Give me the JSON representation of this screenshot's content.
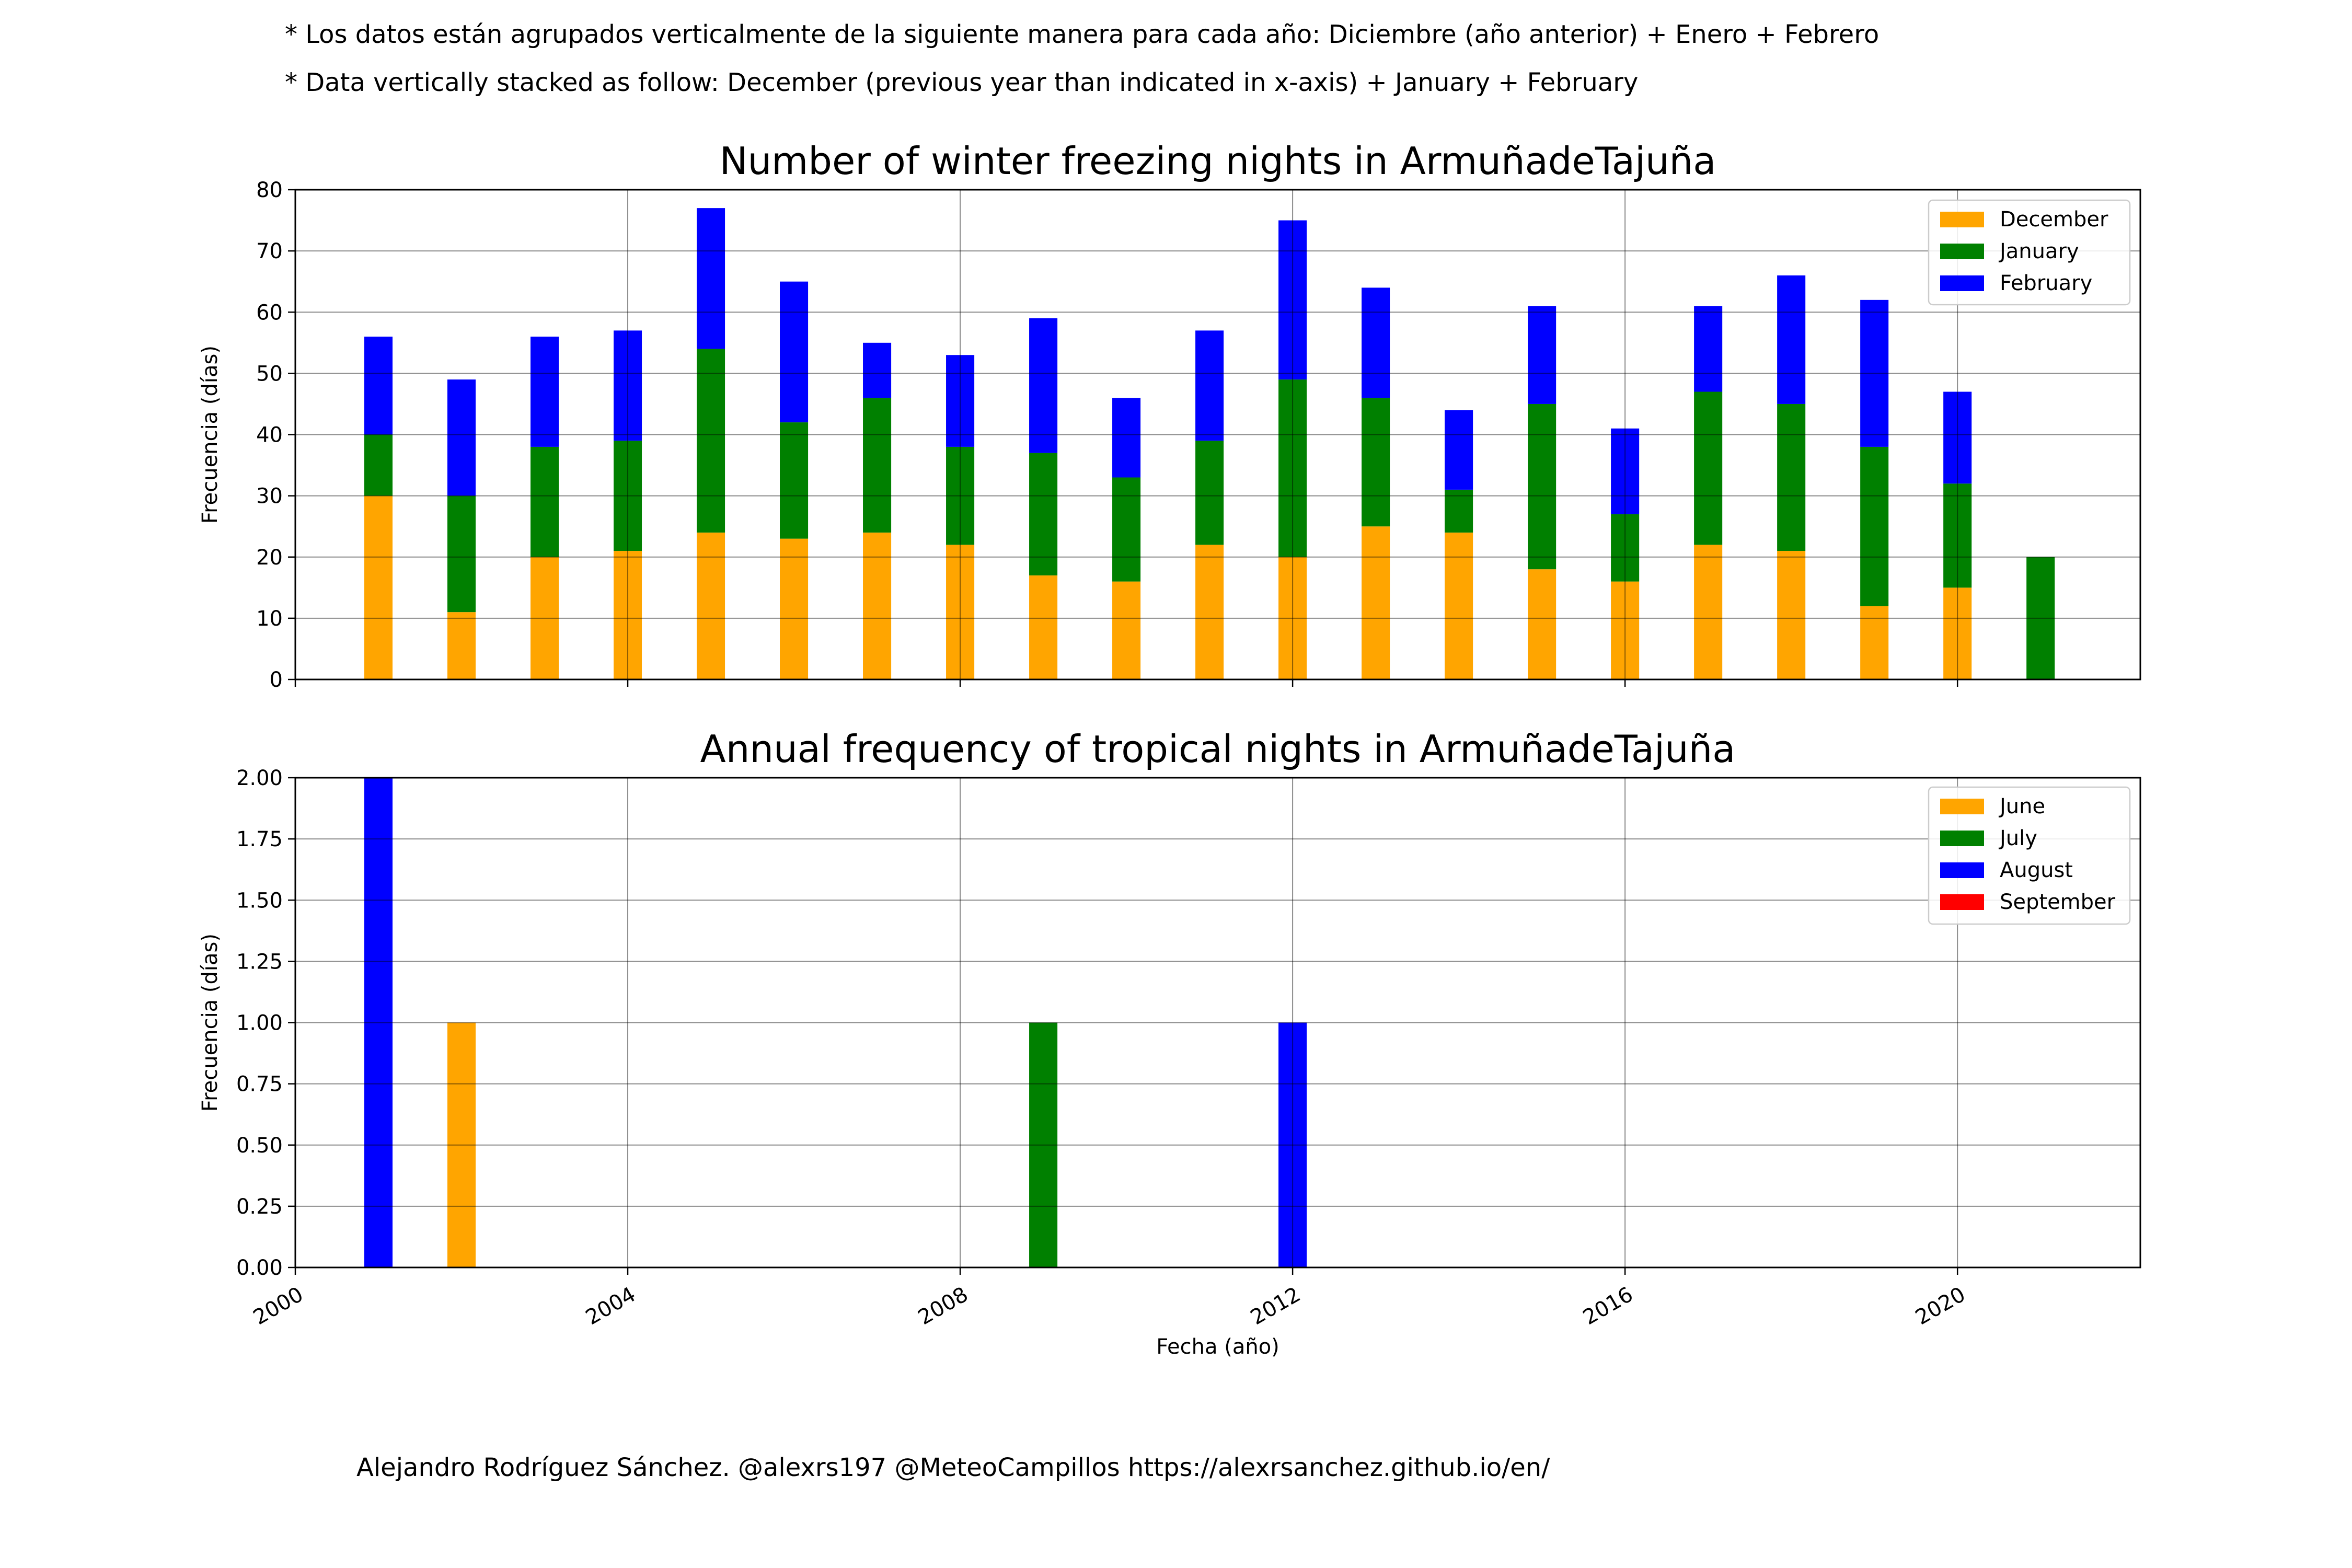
{
  "notes": {
    "es": "* Los datos están agrupados verticalmente de la siguiente manera para cada año: Diciembre (año anterior) + Enero  + Febrero",
    "en": "* Data vertically stacked as follow: December (previous year than indicated in x-axis) + January  + February"
  },
  "credit": "Alejandro Rodríguez Sánchez. @alexrs197 @MeteoCampillos   https://alexrsanchez.github.io/en/",
  "colors": {
    "orange": "#ffa500",
    "green": "#008000",
    "blue": "#0000ff",
    "red": "#ff0000"
  },
  "chart_data": [
    {
      "type": "bar",
      "stacked": true,
      "title": "Number of winter freezing nights in ArmuñadeTajuña",
      "ylabel": "Frecuencia (días)",
      "xlabel": "",
      "ylim": [
        0,
        80
      ],
      "yticks": [
        0,
        10,
        20,
        30,
        40,
        50,
        60,
        70,
        80
      ],
      "ytick_labels": [
        "0",
        "10",
        "20",
        "30",
        "40",
        "50",
        "60",
        "70",
        "80"
      ],
      "xlim": [
        2000,
        2022.2
      ],
      "xticks": [
        2000,
        2004,
        2008,
        2012,
        2016,
        2020
      ],
      "grid": true,
      "legend_position": "top-right",
      "x": [
        2001,
        2002,
        2003,
        2004,
        2005,
        2006,
        2007,
        2008,
        2009,
        2010,
        2011,
        2012,
        2013,
        2014,
        2015,
        2016,
        2017,
        2018,
        2019,
        2020,
        2021
      ],
      "series": [
        {
          "name": "December",
          "color": "#ffa500",
          "values": [
            30,
            11,
            20,
            21,
            24,
            23,
            24,
            22,
            17,
            16,
            22,
            20,
            25,
            24,
            18,
            16,
            22,
            21,
            12,
            15,
            0
          ]
        },
        {
          "name": "January",
          "color": "#008000",
          "values": [
            10,
            19,
            18,
            18,
            30,
            19,
            22,
            16,
            20,
            17,
            17,
            29,
            21,
            7,
            27,
            11,
            25,
            24,
            26,
            17,
            20
          ]
        },
        {
          "name": "February",
          "color": "#0000ff",
          "values": [
            16,
            19,
            18,
            18,
            23,
            23,
            9,
            15,
            22,
            13,
            18,
            26,
            18,
            13,
            16,
            14,
            14,
            21,
            24,
            15,
            0
          ]
        }
      ]
    },
    {
      "type": "bar",
      "stacked": true,
      "title": "Annual frequency of tropical nights in ArmuñadeTajuña",
      "ylabel": "Frecuencia (días)",
      "xlabel": "Fecha (año)",
      "ylim": [
        0,
        2
      ],
      "yticks": [
        0,
        0.25,
        0.5,
        0.75,
        1,
        1.25,
        1.5,
        1.75,
        2
      ],
      "ytick_labels": [
        "0.00",
        "0.25",
        "0.50",
        "0.75",
        "1.00",
        "1.25",
        "1.50",
        "1.75",
        "2.00"
      ],
      "xlim": [
        2000,
        2022.2
      ],
      "xticks": [
        2000,
        2004,
        2008,
        2012,
        2016,
        2020
      ],
      "xtick_labels": [
        "2000",
        "2004",
        "2008",
        "2012",
        "2016",
        "2020"
      ],
      "grid": true,
      "legend_position": "top-right",
      "x": [
        2001,
        2002,
        2009,
        2012
      ],
      "series": [
        {
          "name": "June",
          "color": "#ffa500",
          "values": [
            0,
            1,
            0,
            0
          ]
        },
        {
          "name": "July",
          "color": "#008000",
          "values": [
            0,
            0,
            1,
            0
          ]
        },
        {
          "name": "August",
          "color": "#0000ff",
          "values": [
            2,
            0,
            0,
            1
          ]
        },
        {
          "name": "September",
          "color": "#ff0000",
          "values": [
            0,
            0,
            0,
            0
          ]
        }
      ]
    }
  ]
}
